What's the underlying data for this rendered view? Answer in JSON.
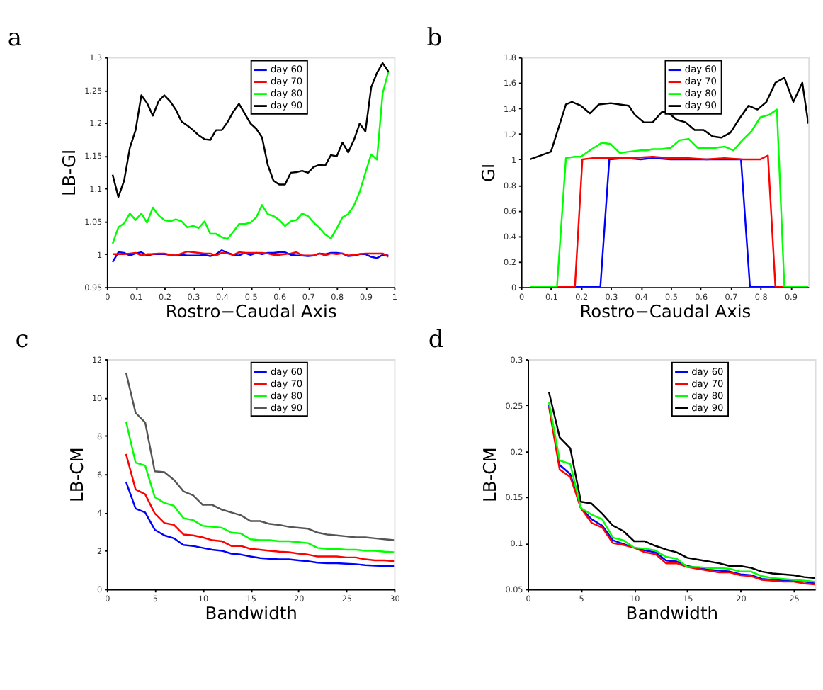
{
  "chart_data": [
    {
      "type": "line",
      "title": "a",
      "xlabel": "Rostro−Caudal Axis",
      "ylabel": "LB-GI",
      "xlim": [
        0,
        1
      ],
      "xticks": [
        0,
        0.1,
        0.2,
        0.3,
        0.4,
        0.5,
        0.6,
        0.7,
        0.8,
        0.9,
        1
      ],
      "ylim": [
        0.95,
        1.3
      ],
      "yticks": [
        0.95,
        1,
        1.05,
        1.1,
        1.15,
        1.2,
        1.25,
        1.3
      ],
      "grid": false,
      "legend": "top right",
      "x": [
        0.02,
        0.04,
        0.06,
        0.08,
        0.1,
        0.12,
        0.14,
        0.16,
        0.18,
        0.2,
        0.22,
        0.24,
        0.26,
        0.28,
        0.3,
        0.32,
        0.34,
        0.36,
        0.38,
        0.4,
        0.42,
        0.44,
        0.46,
        0.48,
        0.5,
        0.52,
        0.54,
        0.56,
        0.58,
        0.6,
        0.62,
        0.64,
        0.66,
        0.68,
        0.7,
        0.72,
        0.74,
        0.76,
        0.78,
        0.8,
        0.82,
        0.84,
        0.86,
        0.88,
        0.9,
        0.92,
        0.94,
        0.96,
        0.98
      ],
      "series": [
        {
          "name": "day 60",
          "color": "#0000ff",
          "values": [
            0.988,
            1.003,
            1.002,
            0.998,
            1.001,
            1.003,
            0.998,
            1.0,
            1.0,
            1.0,
            0.999,
            0.998,
            0.999,
            0.998,
            0.998,
            0.998,
            0.999,
            0.997,
            1.0,
            1.006,
            1.002,
            0.999,
            0.998,
            1.002,
            0.999,
            1.002,
            1.0,
            1.002,
            1.002,
            1.003,
            1.003,
            0.999,
            0.998,
            0.998,
            0.997,
            0.998,
            1.001,
            1.0,
            1.002,
            1.002,
            1.001,
            0.997,
            0.998,
            1.0,
            1.0,
            0.996,
            0.994,
            0.999,
            0.998
          ]
        },
        {
          "name": "day 70",
          "color": "#ff0000",
          "values": [
            1.0,
            1.0,
            1.0,
            1.001,
            1.002,
            0.998,
            1.0,
            1.0,
            1.001,
            1.001,
            0.999,
            0.998,
            1.001,
            1.004,
            1.003,
            1.002,
            1.001,
            1.001,
            0.998,
            1.002,
            1.001,
            0.999,
            1.003,
            1.002,
            1.002,
            1.002,
            1.002,
            1.001,
            0.999,
            0.999,
            1.0,
            1.001,
            1.003,
            0.998,
            0.998,
            0.998,
            1.001,
            0.998,
            1.001,
            1.0,
            1.001,
            0.998,
            0.999,
            1.0,
            1.001,
            1.001,
            1.001,
            1.001,
            0.996
          ]
        },
        {
          "name": "day 80",
          "color": "#00ff00",
          "values": [
            1.016,
            1.041,
            1.047,
            1.062,
            1.052,
            1.062,
            1.048,
            1.071,
            1.059,
            1.052,
            1.05,
            1.053,
            1.05,
            1.041,
            1.043,
            1.04,
            1.05,
            1.031,
            1.031,
            1.026,
            1.023,
            1.034,
            1.046,
            1.046,
            1.048,
            1.056,
            1.075,
            1.061,
            1.058,
            1.052,
            1.043,
            1.05,
            1.052,
            1.062,
            1.058,
            1.048,
            1.04,
            1.03,
            1.024,
            1.039,
            1.056,
            1.061,
            1.074,
            1.095,
            1.124,
            1.152,
            1.144,
            1.245,
            1.278
          ]
        },
        {
          "name": "day 90",
          "color": "#000000",
          "values": [
            1.121,
            1.087,
            1.112,
            1.162,
            1.189,
            1.242,
            1.23,
            1.211,
            1.233,
            1.242,
            1.233,
            1.22,
            1.202,
            1.196,
            1.189,
            1.181,
            1.175,
            1.174,
            1.189,
            1.189,
            1.201,
            1.217,
            1.229,
            1.214,
            1.199,
            1.191,
            1.178,
            1.136,
            1.112,
            1.106,
            1.106,
            1.124,
            1.125,
            1.127,
            1.124,
            1.133,
            1.136,
            1.135,
            1.151,
            1.149,
            1.17,
            1.155,
            1.174,
            1.199,
            1.187,
            1.254,
            1.276,
            1.291,
            1.278
          ]
        }
      ]
    },
    {
      "type": "line",
      "title": "b",
      "xlabel": "Rostro−Caudal Axis",
      "ylabel": "GI",
      "xlim": [
        0,
        0.96
      ],
      "xticks": [
        0,
        0.1,
        0.2,
        0.3,
        0.4,
        0.5,
        0.6,
        0.7,
        0.8,
        0.9
      ],
      "ylim": [
        0,
        1.8
      ],
      "yticks": [
        0,
        0.2,
        0.4,
        0.6,
        0.8,
        1,
        1.2,
        1.4,
        1.6,
        1.8
      ],
      "grid": false,
      "legend": "top right",
      "series": [
        {
          "name": "day 60",
          "color": "#0000ff",
          "x": [
            0.18,
            0.265,
            0.295,
            0.35,
            0.4,
            0.44,
            0.5,
            0.6,
            0.7,
            0.735,
            0.765,
            0.85
          ],
          "values": [
            0,
            0,
            1.0,
            1.01,
            1.0,
            1.01,
            1.0,
            1.0,
            1.0,
            1.0,
            0,
            0
          ]
        },
        {
          "name": "day 70",
          "color": "#ff0000",
          "x": [
            0.12,
            0.18,
            0.205,
            0.24,
            0.3,
            0.36,
            0.44,
            0.5,
            0.56,
            0.62,
            0.68,
            0.74,
            0.8,
            0.825,
            0.85,
            0.88
          ],
          "values": [
            0,
            0,
            1.0,
            1.01,
            1.01,
            1.01,
            1.02,
            1.01,
            1.01,
            1.0,
            1.01,
            1.0,
            1.0,
            1.03,
            0,
            0
          ]
        },
        {
          "name": "day 80",
          "color": "#00ff00",
          "x": [
            0.03,
            0.12,
            0.15,
            0.18,
            0.2,
            0.23,
            0.27,
            0.3,
            0.33,
            0.36,
            0.4,
            0.42,
            0.44,
            0.47,
            0.5,
            0.53,
            0.56,
            0.59,
            0.62,
            0.65,
            0.68,
            0.71,
            0.74,
            0.77,
            0.8,
            0.83,
            0.855,
            0.88,
            0.96
          ],
          "values": [
            0,
            0,
            1.01,
            1.02,
            1.02,
            1.07,
            1.13,
            1.12,
            1.05,
            1.06,
            1.07,
            1.07,
            1.08,
            1.08,
            1.09,
            1.15,
            1.16,
            1.09,
            1.09,
            1.09,
            1.1,
            1.07,
            1.15,
            1.22,
            1.33,
            1.35,
            1.39,
            0,
            0
          ]
        },
        {
          "name": "day 90",
          "color": "#000000",
          "x": [
            0.03,
            0.1,
            0.15,
            0.17,
            0.2,
            0.23,
            0.26,
            0.3,
            0.33,
            0.36,
            0.38,
            0.41,
            0.44,
            0.47,
            0.49,
            0.52,
            0.55,
            0.58,
            0.61,
            0.64,
            0.67,
            0.7,
            0.73,
            0.76,
            0.79,
            0.82,
            0.85,
            0.88,
            0.91,
            0.94,
            0.96
          ],
          "values": [
            1.0,
            1.06,
            1.43,
            1.45,
            1.42,
            1.36,
            1.43,
            1.44,
            1.43,
            1.42,
            1.35,
            1.29,
            1.29,
            1.37,
            1.37,
            1.31,
            1.29,
            1.23,
            1.23,
            1.18,
            1.17,
            1.21,
            1.32,
            1.42,
            1.39,
            1.45,
            1.6,
            1.64,
            1.45,
            1.6,
            1.28
          ]
        }
      ]
    },
    {
      "type": "line",
      "title": "c",
      "xlabel": "Bandwidth",
      "ylabel": "LB-CM",
      "xlim": [
        0,
        30
      ],
      "xticks": [
        0,
        5,
        10,
        15,
        20,
        25,
        30
      ],
      "ylim": [
        0,
        12
      ],
      "yticks": [
        0,
        2,
        4,
        6,
        8,
        10,
        12
      ],
      "grid": false,
      "legend": "top right",
      "x": [
        2,
        3,
        4,
        5,
        6,
        7,
        8,
        9,
        10,
        11,
        12,
        13,
        14,
        15,
        16,
        17,
        18,
        19,
        20,
        21,
        22,
        23,
        24,
        25,
        26,
        27,
        28,
        29,
        30
      ],
      "series": [
        {
          "name": "day 60",
          "color": "#0000ff",
          "values": [
            5.6,
            4.2,
            4.0,
            3.1,
            2.8,
            2.65,
            2.3,
            2.25,
            2.15,
            2.05,
            2.0,
            1.85,
            1.8,
            1.7,
            1.62,
            1.58,
            1.55,
            1.55,
            1.5,
            1.45,
            1.38,
            1.35,
            1.35,
            1.32,
            1.3,
            1.25,
            1.22,
            1.2,
            1.2
          ]
        },
        {
          "name": "day 70",
          "color": "#ff0000",
          "values": [
            7.05,
            5.2,
            4.95,
            3.95,
            3.45,
            3.35,
            2.85,
            2.8,
            2.7,
            2.55,
            2.5,
            2.25,
            2.25,
            2.1,
            2.05,
            2.0,
            1.95,
            1.92,
            1.85,
            1.8,
            1.7,
            1.7,
            1.7,
            1.65,
            1.65,
            1.55,
            1.5,
            1.5,
            1.45
          ]
        },
        {
          "name": "day 80",
          "color": "#00ff00",
          "values": [
            8.75,
            6.6,
            6.45,
            4.8,
            4.5,
            4.35,
            3.7,
            3.6,
            3.3,
            3.25,
            3.2,
            2.95,
            2.9,
            2.6,
            2.55,
            2.55,
            2.5,
            2.5,
            2.45,
            2.4,
            2.15,
            2.1,
            2.1,
            2.05,
            2.05,
            2.0,
            2.0,
            1.95,
            1.92
          ]
        },
        {
          "name": "day 90",
          "color": "#555555",
          "values": [
            11.3,
            9.2,
            8.7,
            6.15,
            6.1,
            5.7,
            5.1,
            4.9,
            4.4,
            4.4,
            4.15,
            4.0,
            3.85,
            3.55,
            3.55,
            3.4,
            3.35,
            3.25,
            3.2,
            3.15,
            2.95,
            2.85,
            2.8,
            2.75,
            2.7,
            2.7,
            2.65,
            2.6,
            2.55
          ]
        }
      ]
    },
    {
      "type": "line",
      "title": "d",
      "xlabel": "Bandwidth",
      "ylabel": "LB-CM",
      "xlim": [
        0,
        27
      ],
      "xticks": [
        0,
        5,
        10,
        15,
        20,
        25
      ],
      "ylim": [
        0.05,
        0.3
      ],
      "yticks": [
        0.05,
        0.1,
        0.15,
        0.2,
        0.25,
        0.3
      ],
      "grid": false,
      "legend": "top right",
      "x": [
        2,
        3,
        4,
        5,
        6,
        7,
        8,
        9,
        10,
        11,
        12,
        13,
        14,
        15,
        16,
        17,
        18,
        19,
        20,
        21,
        22,
        23,
        24,
        25,
        26,
        27
      ],
      "series": [
        {
          "name": "day 60",
          "color": "#0000ff",
          "values": [
            0.25,
            0.185,
            0.175,
            0.138,
            0.126,
            0.119,
            0.103,
            0.099,
            0.095,
            0.092,
            0.09,
            0.081,
            0.08,
            0.075,
            0.073,
            0.071,
            0.07,
            0.069,
            0.066,
            0.065,
            0.061,
            0.06,
            0.059,
            0.059,
            0.058,
            0.056
          ]
        },
        {
          "name": "day 70",
          "color": "#ff0000",
          "values": [
            0.248,
            0.18,
            0.172,
            0.138,
            0.122,
            0.117,
            0.1,
            0.098,
            0.095,
            0.09,
            0.088,
            0.078,
            0.078,
            0.074,
            0.072,
            0.07,
            0.068,
            0.068,
            0.065,
            0.064,
            0.06,
            0.059,
            0.058,
            0.058,
            0.056,
            0.055
          ]
        },
        {
          "name": "day 80",
          "color": "#00ff00",
          "values": [
            0.253,
            0.19,
            0.186,
            0.138,
            0.131,
            0.126,
            0.106,
            0.103,
            0.095,
            0.094,
            0.092,
            0.085,
            0.083,
            0.074,
            0.074,
            0.073,
            0.073,
            0.072,
            0.069,
            0.069,
            0.064,
            0.062,
            0.061,
            0.06,
            0.059,
            0.058
          ]
        },
        {
          "name": "day 90",
          "color": "#000000",
          "values": [
            0.264,
            0.215,
            0.203,
            0.145,
            0.143,
            0.132,
            0.119,
            0.113,
            0.102,
            0.102,
            0.097,
            0.093,
            0.09,
            0.084,
            0.082,
            0.08,
            0.078,
            0.075,
            0.075,
            0.073,
            0.069,
            0.067,
            0.066,
            0.065,
            0.063,
            0.062
          ]
        }
      ]
    }
  ]
}
